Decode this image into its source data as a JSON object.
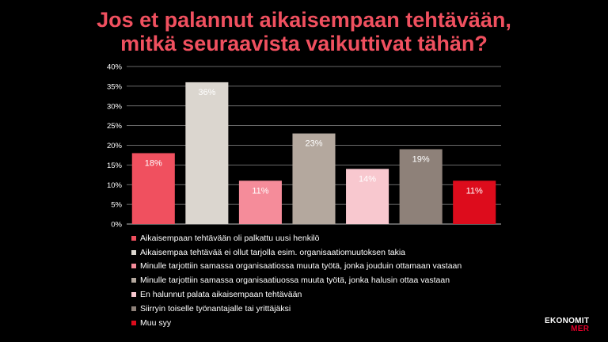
{
  "header": {
    "title_line1": "Jos et palannut aikaisempaan tehtävään,",
    "title_line2": "mitkä seuraavista vaikuttivat tähän?"
  },
  "chart_data": {
    "type": "bar",
    "title": "Jos et palannut aikaisempaan tehtävään, mitkä seuraavista vaikuttivat tähän?",
    "ylim": [
      0,
      40
    ],
    "yticks": [
      0,
      5,
      10,
      15,
      20,
      25,
      30,
      35,
      40
    ],
    "ytick_labels": [
      "0%",
      "5%",
      "10%",
      "15%",
      "20%",
      "25%",
      "30%",
      "35%",
      "40%"
    ],
    "grid": true,
    "legend_position": "bottom",
    "series": [
      {
        "name": "Aikaisempaan tehtävään oli palkattu uusi henkilö",
        "value": 18,
        "label": "18%",
        "color": "#f0505f"
      },
      {
        "name": "Aikaisempaa tehtävää ei ollut tarjolla esim. organisaatiomuutoksen takia",
        "value": 36,
        "label": "36%",
        "color": "#dbd6cf"
      },
      {
        "name": "Minulle tarjottiin samassa organisaatiossa muuta työtä, jonka jouduin ottamaan vastaan",
        "value": 11,
        "label": "11%",
        "color": "#f58c9a"
      },
      {
        "name": "Minulle tarjottiin samassa organisaatiuossa muuta työtä, jonka halusin ottaa vastaan",
        "value": 23,
        "label": "23%",
        "color": "#b4a89e"
      },
      {
        "name": "En halunnut palata aikaisempaan tehtävään",
        "value": 14,
        "label": "14%",
        "color": "#f8c8cf"
      },
      {
        "name": "Siirryin toiselle työnantajalle tai yrittäjäksi",
        "value": 19,
        "label": "19%",
        "color": "#8e8179"
      },
      {
        "name": "Muu syy",
        "value": 11,
        "label": "11%",
        "color": "#dd0c1c"
      }
    ]
  },
  "logo": {
    "line1": "EKONOMIT",
    "line2": "MER"
  }
}
